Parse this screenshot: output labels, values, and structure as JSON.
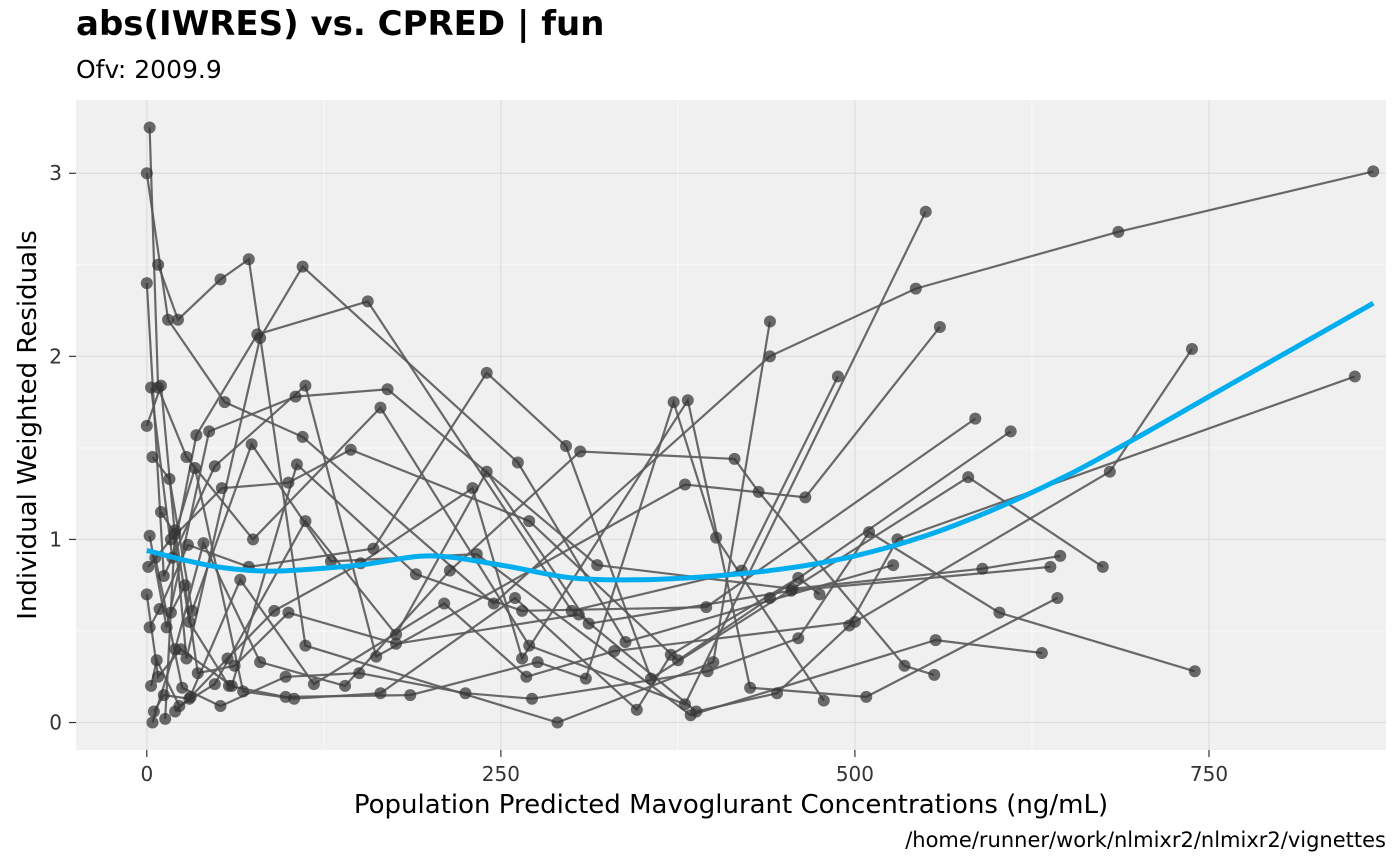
{
  "header": {
    "title": "abs(IWRES) vs. CPRED | fun",
    "subtitle": "Ofv: 2009.9"
  },
  "caption": "/home/runner/work/nlmixr2/nlmixr2/vignettes",
  "colors": {
    "panel": "#f0f0f0",
    "grid": "#dddddd",
    "points": "#333333",
    "lines": "#595959",
    "smooth": "#00aeef"
  },
  "chart_data": {
    "type": "scatter",
    "xlabel": "Population Predicted Mavoglurant Concentrations (ng/mL)",
    "ylabel": "Individual Weighted Residuals",
    "xlim": [
      -50,
      875
    ],
    "ylim": [
      -0.15,
      3.4
    ],
    "x_ticks": [
      0,
      250,
      500,
      750
    ],
    "y_ticks": [
      0,
      1,
      2,
      3
    ],
    "x_tick_labels": [
      "0",
      "250",
      "500",
      "750"
    ],
    "y_tick_labels": [
      "0",
      "1",
      "2",
      "3"
    ],
    "grid": true,
    "subjects": [
      [
        [
          0,
          3.0
        ],
        [
          15,
          2.2
        ],
        [
          55,
          1.75
        ],
        [
          110,
          1.56
        ],
        [
          245,
          0.65
        ],
        [
          440,
          2.0
        ],
        [
          543,
          2.37
        ],
        [
          686,
          2.68
        ],
        [
          866,
          3.01
        ]
      ],
      [
        [
          2,
          3.25
        ],
        [
          8,
          1.83
        ],
        [
          28,
          1.45
        ],
        [
          75,
          1.0
        ],
        [
          165,
          1.72
        ],
        [
          270,
          0.42
        ],
        [
          380,
          0.1
        ],
        [
          550,
          2.79
        ]
      ],
      [
        [
          0,
          2.4
        ],
        [
          12,
          0.8
        ],
        [
          48,
          1.4
        ],
        [
          112,
          1.84
        ],
        [
          162,
          0.36
        ],
        [
          380,
          1.3
        ],
        [
          465,
          1.23
        ],
        [
          560,
          2.16
        ]
      ],
      [
        [
          8,
          2.5
        ],
        [
          22,
          2.2
        ],
        [
          52,
          2.42
        ],
        [
          72,
          2.53
        ],
        [
          112,
          0.42
        ],
        [
          290,
          0.0
        ],
        [
          400,
          0.33
        ],
        [
          440,
          2.19
        ]
      ],
      [
        [
          3,
          1.83
        ],
        [
          18,
          0.9
        ],
        [
          35,
          1.57
        ],
        [
          78,
          2.12
        ],
        [
          156,
          2.3
        ],
        [
          300,
          0.61
        ],
        [
          420,
          0.83
        ],
        [
          488,
          1.89
        ]
      ],
      [
        [
          0,
          1.62
        ],
        [
          10,
          1.84
        ],
        [
          28,
          0.35
        ],
        [
          80,
          2.1
        ],
        [
          110,
          2.49
        ],
        [
          262,
          1.42
        ],
        [
          338,
          0.44
        ],
        [
          527,
          0.86
        ]
      ],
      [
        [
          4,
          1.45
        ],
        [
          16,
          1.33
        ],
        [
          32,
          0.61
        ],
        [
          74,
          1.52
        ],
        [
          130,
          0.88
        ],
        [
          233,
          0.92
        ],
        [
          384,
          0.04
        ],
        [
          557,
          0.45
        ],
        [
          632,
          0.38
        ]
      ],
      [
        [
          2,
          1.02
        ],
        [
          14,
          0.52
        ],
        [
          44,
          1.59
        ],
        [
          105,
          1.78
        ],
        [
          170,
          1.82
        ],
        [
          318,
          0.86
        ],
        [
          456,
          0.73
        ],
        [
          590,
          0.84
        ],
        [
          645,
          0.91
        ]
      ],
      [
        [
          1,
          0.85
        ],
        [
          17,
          1.0
        ],
        [
          53,
          1.28
        ],
        [
          100,
          1.31
        ],
        [
          144,
          1.49
        ],
        [
          270,
          1.1
        ],
        [
          375,
          0.34
        ],
        [
          440,
          0.68
        ],
        [
          610,
          1.59
        ]
      ],
      [
        [
          0,
          0.7
        ],
        [
          8,
          0.25
        ],
        [
          24,
          0.4
        ],
        [
          60,
          0.2
        ],
        [
          106,
          1.41
        ],
        [
          190,
          0.81
        ],
        [
          265,
          0.61
        ],
        [
          395,
          0.63
        ],
        [
          585,
          1.66
        ]
      ],
      [
        [
          2,
          0.52
        ],
        [
          9,
          0.62
        ],
        [
          29,
          0.97
        ],
        [
          72,
          0.85
        ],
        [
          160,
          0.95
        ],
        [
          240,
          1.91
        ],
        [
          296,
          1.51
        ],
        [
          356,
          0.24
        ],
        [
          580,
          1.34
        ],
        [
          675,
          0.85
        ]
      ],
      [
        [
          3,
          0.2
        ],
        [
          7,
          0.34
        ],
        [
          23,
          0.09
        ],
        [
          48,
          0.21
        ],
        [
          112,
          1.1
        ],
        [
          176,
          0.48
        ],
        [
          240,
          1.37
        ],
        [
          312,
          0.54
        ],
        [
          455,
          0.72
        ],
        [
          638,
          0.85
        ]
      ],
      [
        [
          5,
          0.06
        ],
        [
          12,
          0.15
        ],
        [
          30,
          0.13
        ],
        [
          66,
          0.78
        ],
        [
          118,
          0.21
        ],
        [
          210,
          0.65
        ],
        [
          268,
          0.25
        ],
        [
          330,
          0.39
        ],
        [
          500,
          0.55
        ],
        [
          680,
          1.37
        ],
        [
          738,
          2.04
        ]
      ],
      [
        [
          4,
          0.0
        ],
        [
          20,
          0.4
        ],
        [
          40,
          0.98
        ],
        [
          80,
          0.33
        ],
        [
          140,
          0.2
        ],
        [
          214,
          0.83
        ],
        [
          306,
          1.48
        ],
        [
          415,
          1.44
        ],
        [
          432,
          1.26
        ],
        [
          535,
          0.31
        ],
        [
          556,
          0.26
        ]
      ],
      [
        [
          6,
          0.9
        ],
        [
          25,
          0.19
        ],
        [
          52,
          0.09
        ],
        [
          98,
          0.25
        ],
        [
          150,
          0.27
        ],
        [
          225,
          0.16
        ],
        [
          272,
          0.13
        ],
        [
          396,
          0.28
        ],
        [
          460,
          0.46
        ],
        [
          510,
          1.04
        ],
        [
          602,
          0.6
        ],
        [
          740,
          0.28
        ]
      ],
      [
        [
          10,
          1.15
        ],
        [
          20,
          1.03
        ],
        [
          34,
          1.39
        ],
        [
          68,
          0.17
        ],
        [
          104,
          0.13
        ],
        [
          165,
          0.16
        ],
        [
          260,
          0.68
        ],
        [
          346,
          0.07
        ],
        [
          370,
          0.37
        ],
        [
          460,
          0.79
        ],
        [
          475,
          0.7
        ]
      ],
      [
        [
          13,
          0.02
        ],
        [
          20,
          1.05
        ],
        [
          30,
          0.55
        ],
        [
          58,
          0.2
        ],
        [
          98,
          0.14
        ],
        [
          186,
          0.15
        ],
        [
          276,
          0.33
        ],
        [
          310,
          0.24
        ],
        [
          372,
          1.75
        ],
        [
          402,
          1.01
        ],
        [
          478,
          0.12
        ]
      ],
      [
        [
          17,
          0.6
        ],
        [
          27,
          0.75
        ],
        [
          36,
          0.27
        ],
        [
          62,
          0.31
        ],
        [
          100,
          0.6
        ],
        [
          176,
          0.43
        ],
        [
          305,
          0.59
        ],
        [
          388,
          0.06
        ],
        [
          445,
          0.16
        ],
        [
          496,
          0.53
        ],
        [
          530,
          1.0
        ],
        [
          853,
          1.89
        ]
      ],
      [
        [
          20,
          0.06
        ],
        [
          31,
          0.14
        ],
        [
          57,
          0.35
        ],
        [
          90,
          0.61
        ],
        [
          151,
          0.87
        ],
        [
          230,
          1.28
        ],
        [
          265,
          0.35
        ],
        [
          382,
          1.76
        ],
        [
          426,
          0.19
        ],
        [
          508,
          0.14
        ],
        [
          643,
          0.68
        ]
      ]
    ],
    "smooth": {
      "x": [
        0,
        25,
        50,
        75,
        100,
        150,
        200,
        250,
        300,
        350,
        400,
        450,
        500,
        550,
        600,
        650,
        700,
        750,
        800,
        866
      ],
      "y": [
        0.94,
        0.89,
        0.85,
        0.83,
        0.83,
        0.86,
        0.91,
        0.86,
        0.79,
        0.78,
        0.8,
        0.84,
        0.91,
        1.02,
        1.17,
        1.35,
        1.56,
        1.78,
        2.0,
        2.29
      ]
    }
  }
}
